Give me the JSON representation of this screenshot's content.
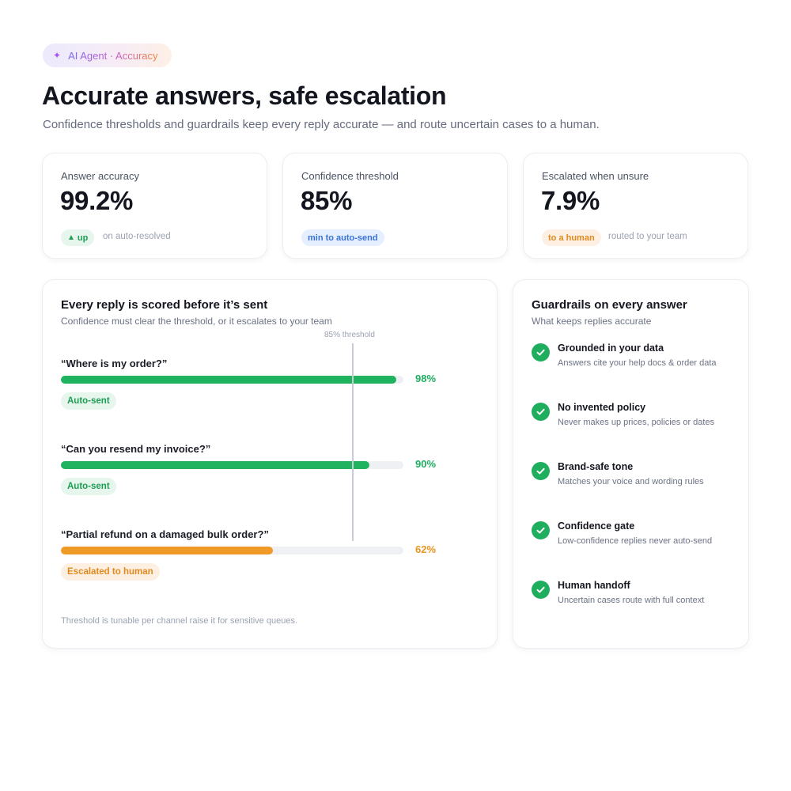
{
  "tag": {
    "icon": "sparkle-icon",
    "text": "AI Agent · Accuracy"
  },
  "header": {
    "title": "Accurate answers, safe escalation",
    "subtitle": "Confidence thresholds and guardrails keep every reply accurate — and route uncertain cases to a human."
  },
  "stats": [
    {
      "label": "Answer accuracy",
      "value": "99.2%",
      "badge": "up",
      "badge_icon": "up-triangle-icon",
      "note": "on auto-resolved"
    },
    {
      "label": "Confidence threshold",
      "value": "85%",
      "badge": "min to auto-send",
      "note": ""
    },
    {
      "label": "Escalated when unsure",
      "value": "7.9%",
      "badge": "to a human",
      "note": "routed to your team"
    }
  ],
  "scores": {
    "title": "Every reply is scored before it’s sent",
    "subtitle": "Confidence must clear the threshold, or it escalates to your team",
    "threshold_label": "85% threshold",
    "threshold": 85,
    "rows": [
      {
        "question": "“Where is my order?”",
        "confidence": 98,
        "pct_label": "98%",
        "status": "Auto-sent"
      },
      {
        "question": "“Can you resend my invoice?”",
        "confidence": 90,
        "pct_label": "90%",
        "status": "Auto-sent"
      },
      {
        "question": "“Partial refund on a damaged bulk order?”",
        "confidence": 62,
        "pct_label": "62%",
        "status": "Escalated to human"
      }
    ],
    "footnote": "Threshold is tunable per channel  raise it for sensitive queues."
  },
  "guardrails": {
    "title": "Guardrails on every answer",
    "subtitle": "What keeps replies accurate",
    "items": [
      {
        "title": "Grounded in your data",
        "desc": "Answers cite your help docs & order data"
      },
      {
        "title": "No invented policy",
        "desc": "Never makes up prices, policies or dates"
      },
      {
        "title": "Brand-safe tone",
        "desc": "Matches your voice and wording rules"
      },
      {
        "title": "Confidence gate",
        "desc": "Low-confidence replies never auto-send"
      },
      {
        "title": "Human handoff",
        "desc": "Uncertain cases route with full context"
      }
    ]
  },
  "colors": {
    "pass": "#1fb25f",
    "escalate": "#ef9a26",
    "pass_text": "#1fad5e",
    "escalate_text": "#e8961f"
  }
}
